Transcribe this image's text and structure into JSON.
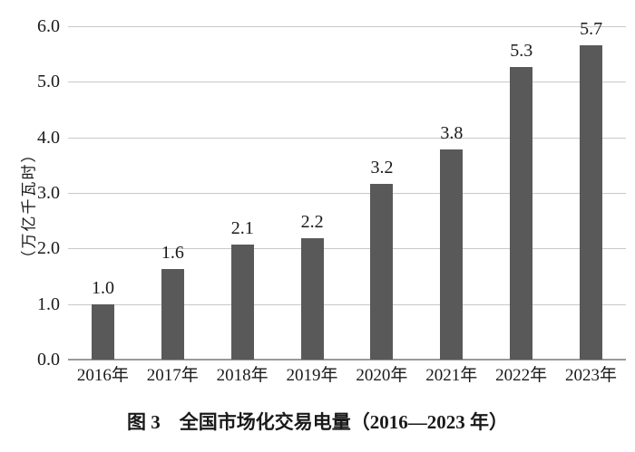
{
  "figure": {
    "caption": "图 3　全国市场化交易电量（2016—2023 年）"
  },
  "chart_data": {
    "type": "bar",
    "title": "图 3　全国市场化交易电量（2016—2023 年）",
    "categories": [
      "2016年",
      "2017年",
      "2018年",
      "2019年",
      "2020年",
      "2021年",
      "2022年",
      "2023年"
    ],
    "values": [
      1.0,
      1.6,
      2.1,
      2.2,
      3.2,
      3.8,
      5.3,
      5.7
    ],
    "value_labels": [
      "1.0",
      "1.6",
      "2.1",
      "2.2",
      "3.2",
      "3.8",
      "5.3",
      "5.7"
    ],
    "bar_heights_precise": [
      1.0,
      1.63,
      2.07,
      2.18,
      3.16,
      3.78,
      5.26,
      5.66
    ],
    "xlabel": "",
    "ylabel": "（万亿千瓦时）",
    "ylim": [
      0,
      6
    ],
    "ytick_labels": [
      "0.0",
      "1.0",
      "2.0",
      "3.0",
      "4.0",
      "5.0",
      "6.0"
    ],
    "grid": true,
    "legend": false,
    "colors": {
      "bar": "#595959",
      "gridline": "#c9c9c9",
      "axis_baseline": "#9a9a9a",
      "text": "#1a1a1a",
      "background": "#ffffff"
    }
  }
}
